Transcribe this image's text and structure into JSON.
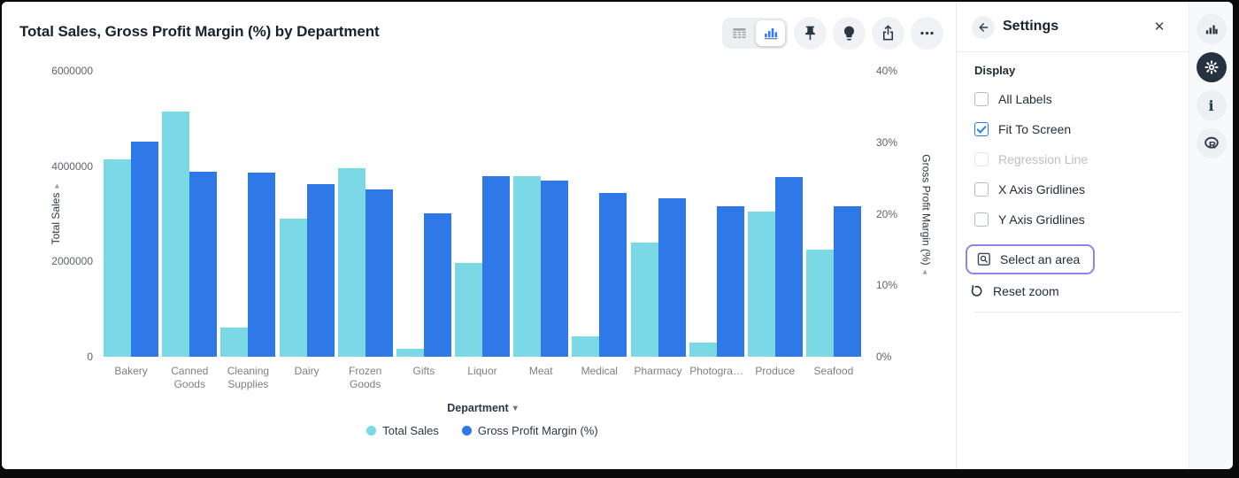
{
  "header": {
    "title": "Total Sales, Gross Profit Margin (%) by Department"
  },
  "icons": {
    "caret_down": "▾",
    "caret_right": "▸",
    "caret_left": "◂",
    "close": "✕"
  },
  "toolbar": {
    "icons": [
      "table-view",
      "chart-view",
      "pin",
      "suggestions",
      "export",
      "more-menu"
    ]
  },
  "chart_data": {
    "type": "bar",
    "title": "Total Sales, Gross Profit Margin (%) by Department",
    "categories": [
      "Bakery",
      "Canned Goods",
      "Cleaning Supplies",
      "Dairy",
      "Frozen Goods",
      "Gifts",
      "Liquor",
      "Meat",
      "Medical",
      "Pharmacy",
      "Photogra…",
      "Produce",
      "Seafood"
    ],
    "series": [
      {
        "name": "Total Sales",
        "axis": "left",
        "color": "#7bd9e6",
        "values": [
          4150000,
          5150000,
          620000,
          2900000,
          3960000,
          170000,
          1960000,
          3790000,
          420000,
          2400000,
          300000,
          3040000,
          2250000
        ]
      },
      {
        "name": "Gross Profit Margin (%)",
        "axis": "right",
        "color": "#2e78e8",
        "values": [
          30.1,
          25.9,
          25.8,
          24.1,
          23.4,
          20.1,
          25.3,
          24.7,
          22.9,
          22.2,
          21.1,
          25.2,
          21.0
        ]
      }
    ],
    "xlabel": "Department",
    "y_left": {
      "label": "Total Sales",
      "max": 6000000,
      "tick_values": [
        0,
        2000000,
        4000000,
        6000000
      ]
    },
    "y_right": {
      "label": "Gross Profit Margin (%)",
      "max": 40,
      "tick_values": [
        0,
        10,
        20,
        30,
        40
      ]
    },
    "grid": false,
    "legend_position": "bottom"
  },
  "settings": {
    "title": "Settings",
    "section_label": "Display",
    "display_options": [
      {
        "label": "All Labels",
        "state": "unchecked"
      },
      {
        "label": "Fit To Screen",
        "state": "checked"
      },
      {
        "label": "Regression Line",
        "state": "disabled"
      },
      {
        "label": "X Axis Gridlines",
        "state": "unchecked"
      },
      {
        "label": "Y Axis Gridlines",
        "state": "unchecked"
      }
    ],
    "select_area_label": "Select an area",
    "reset_zoom_label": "Reset zoom"
  },
  "colors": {
    "series_total_sales": "#7bd9e6",
    "series_gpm": "#2e78e8",
    "accent_blue": "#2a7bf2",
    "highlight_purple": "#8d86e9",
    "rail_active": "#273241"
  }
}
